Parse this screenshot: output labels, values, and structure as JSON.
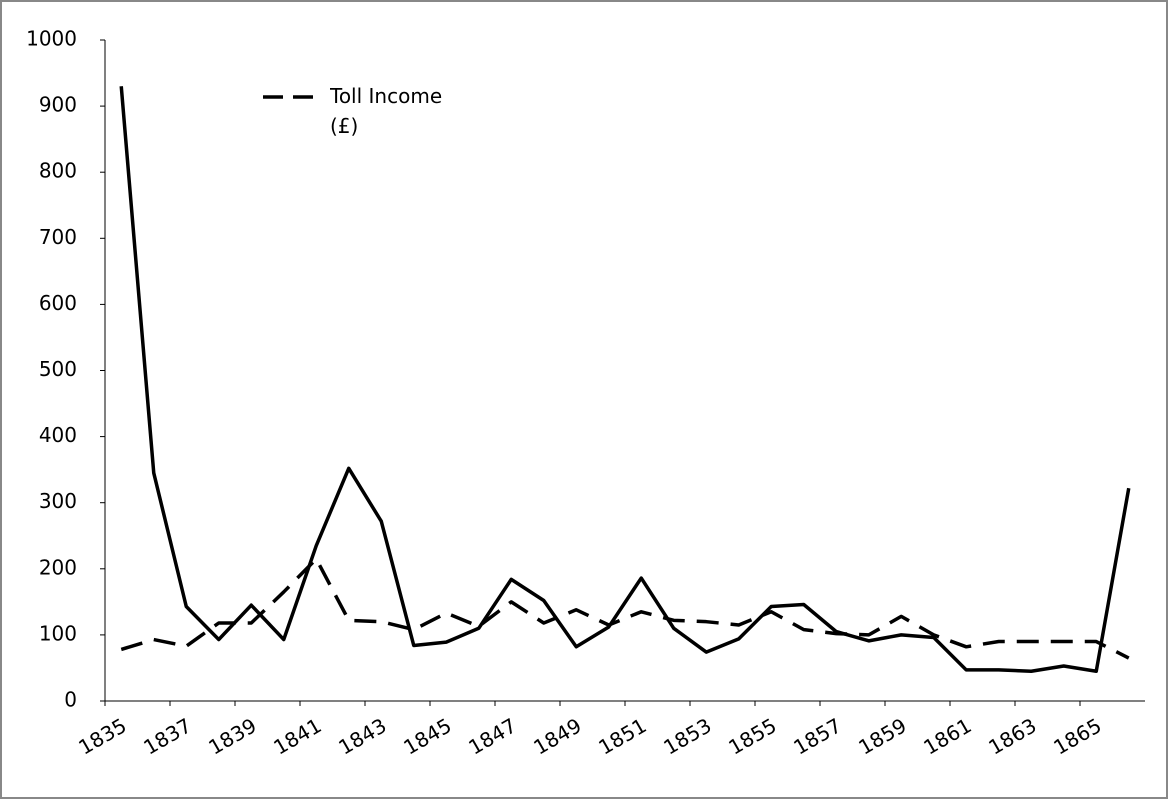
{
  "chart_data": {
    "type": "line",
    "categories": [
      "1835",
      null,
      "1837",
      null,
      "1839",
      null,
      "1841",
      null,
      "1843",
      null,
      "1845",
      null,
      "1847",
      null,
      "1849",
      null,
      "1851",
      null,
      "1853",
      null,
      "1855",
      null,
      "1857",
      null,
      "1859",
      null,
      "1861",
      null,
      "1863",
      null,
      "1865",
      null
    ],
    "series": [
      {
        "color": "#000000",
        "line_style": "solid",
        "values": [
          930,
          345,
          143,
          93,
          145,
          93,
          235,
          352,
          272,
          84,
          89,
          110,
          184,
          152,
          82,
          112,
          186,
          110,
          74,
          94,
          143,
          146,
          105,
          91,
          100,
          96,
          47,
          47,
          45,
          53,
          45,
          322
        ]
      },
      {
        "name": "Toll Income (£)",
        "color": "#000000",
        "line_style": "dashed",
        "values": [
          78,
          93,
          83,
          118,
          118,
          165,
          215,
          122,
          120,
          108,
          133,
          113,
          150,
          118,
          138,
          115,
          135,
          122,
          120,
          115,
          135,
          108,
          102,
          100,
          128,
          100,
          82,
          90,
          90,
          90,
          90,
          65
        ]
      }
    ],
    "ylim": [
      0,
      1000
    ],
    "yticks": [
      0,
      100,
      200,
      300,
      400,
      500,
      600,
      700,
      800,
      900,
      1000
    ],
    "grid": false,
    "legend": "top-left"
  }
}
